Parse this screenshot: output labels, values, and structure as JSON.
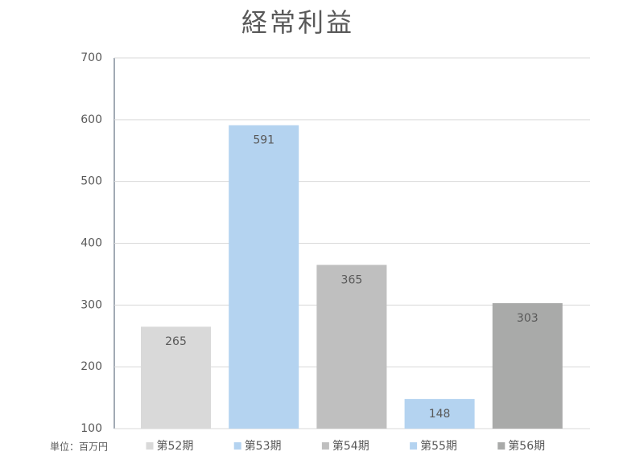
{
  "chart_data": {
    "type": "bar",
    "title": "経常利益",
    "unit_label": "単位：百万円",
    "categories": [
      "第52期",
      "第53期",
      "第54期",
      "第55期",
      "第56期"
    ],
    "values": [
      265,
      591,
      365,
      148,
      303
    ],
    "colors": [
      "#d9d9d9",
      "#b4d3f0",
      "#bfbfbf",
      "#b4d3f0",
      "#a9aaa9"
    ],
    "ylim": [
      100,
      700
    ],
    "yticks": [
      100,
      200,
      300,
      400,
      500,
      600,
      700
    ],
    "grid": true
  }
}
